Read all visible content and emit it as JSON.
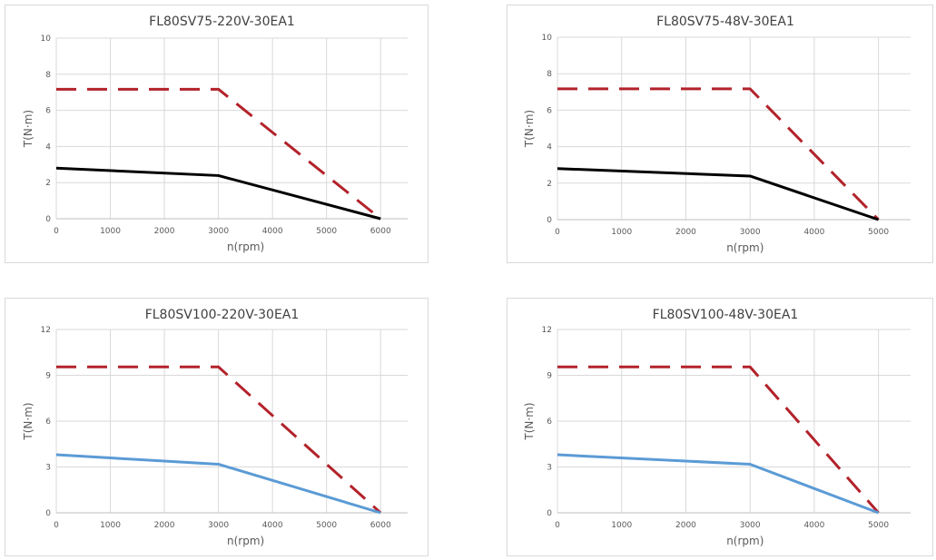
{
  "chart_data": [
    {
      "type": "line",
      "title": "FL80SV75-220V-30EA1",
      "xlabel": "n(rpm)",
      "ylabel": "T(N·m)",
      "xlim": [
        0,
        6500
      ],
      "ylim": [
        0,
        10
      ],
      "xticks": [
        0,
        1000,
        2000,
        3000,
        4000,
        5000,
        6000
      ],
      "yticks": [
        0,
        2,
        4,
        6,
        8,
        10
      ],
      "grid": true,
      "series": [
        {
          "style": "dashed",
          "color": "#b3222a",
          "x": [
            0,
            3000,
            6000
          ],
          "y": [
            7.17,
            7.17,
            0
          ]
        },
        {
          "style": "solid",
          "color": "#000000",
          "x": [
            0,
            3000,
            6000
          ],
          "y": [
            2.8,
            2.39,
            0
          ]
        }
      ]
    },
    {
      "type": "line",
      "title": "FL80SV75-48V-30EA1",
      "xlabel": "n(rpm)",
      "ylabel": "T(N·m)",
      "xlim": [
        0,
        5500
      ],
      "ylim": [
        0,
        10
      ],
      "xticks": [
        0,
        1000,
        2000,
        3000,
        4000,
        5000
      ],
      "yticks": [
        0,
        2,
        4,
        6,
        8,
        10
      ],
      "grid": true,
      "series": [
        {
          "style": "dashed",
          "color": "#b3222a",
          "x": [
            0,
            3000,
            5000
          ],
          "y": [
            7.17,
            7.17,
            0
          ]
        },
        {
          "style": "solid",
          "color": "#000000",
          "x": [
            0,
            3000,
            5000
          ],
          "y": [
            2.8,
            2.39,
            0
          ]
        }
      ]
    },
    {
      "type": "line",
      "title": "FL80SV100-220V-30EA1",
      "xlabel": "n(rpm)",
      "ylabel": "T(N·m)",
      "xlim": [
        0,
        6500
      ],
      "ylim": [
        0,
        12
      ],
      "xticks": [
        0,
        1000,
        2000,
        3000,
        4000,
        5000,
        6000
      ],
      "yticks": [
        0,
        3,
        6,
        9,
        12
      ],
      "grid": true,
      "series": [
        {
          "style": "dashed",
          "color": "#b3222a",
          "x": [
            0,
            3000,
            6000
          ],
          "y": [
            9.55,
            9.55,
            0
          ]
        },
        {
          "style": "solid",
          "color": "#5b9bd5",
          "x": [
            0,
            3000,
            6000
          ],
          "y": [
            3.8,
            3.18,
            0
          ]
        }
      ]
    },
    {
      "type": "line",
      "title": "FL80SV100-48V-30EA1",
      "xlabel": "n(rpm)",
      "ylabel": "T(N·m)",
      "xlim": [
        0,
        5500
      ],
      "ylim": [
        0,
        12
      ],
      "xticks": [
        0,
        1000,
        2000,
        3000,
        4000,
        5000
      ],
      "yticks": [
        0,
        3,
        6,
        9,
        12
      ],
      "grid": true,
      "series": [
        {
          "style": "dashed",
          "color": "#b3222a",
          "x": [
            0,
            3000,
            5000
          ],
          "y": [
            9.55,
            9.55,
            0
          ]
        },
        {
          "style": "solid",
          "color": "#5b9bd5",
          "x": [
            0,
            3000,
            5000
          ],
          "y": [
            3.8,
            3.18,
            0
          ]
        }
      ]
    }
  ]
}
